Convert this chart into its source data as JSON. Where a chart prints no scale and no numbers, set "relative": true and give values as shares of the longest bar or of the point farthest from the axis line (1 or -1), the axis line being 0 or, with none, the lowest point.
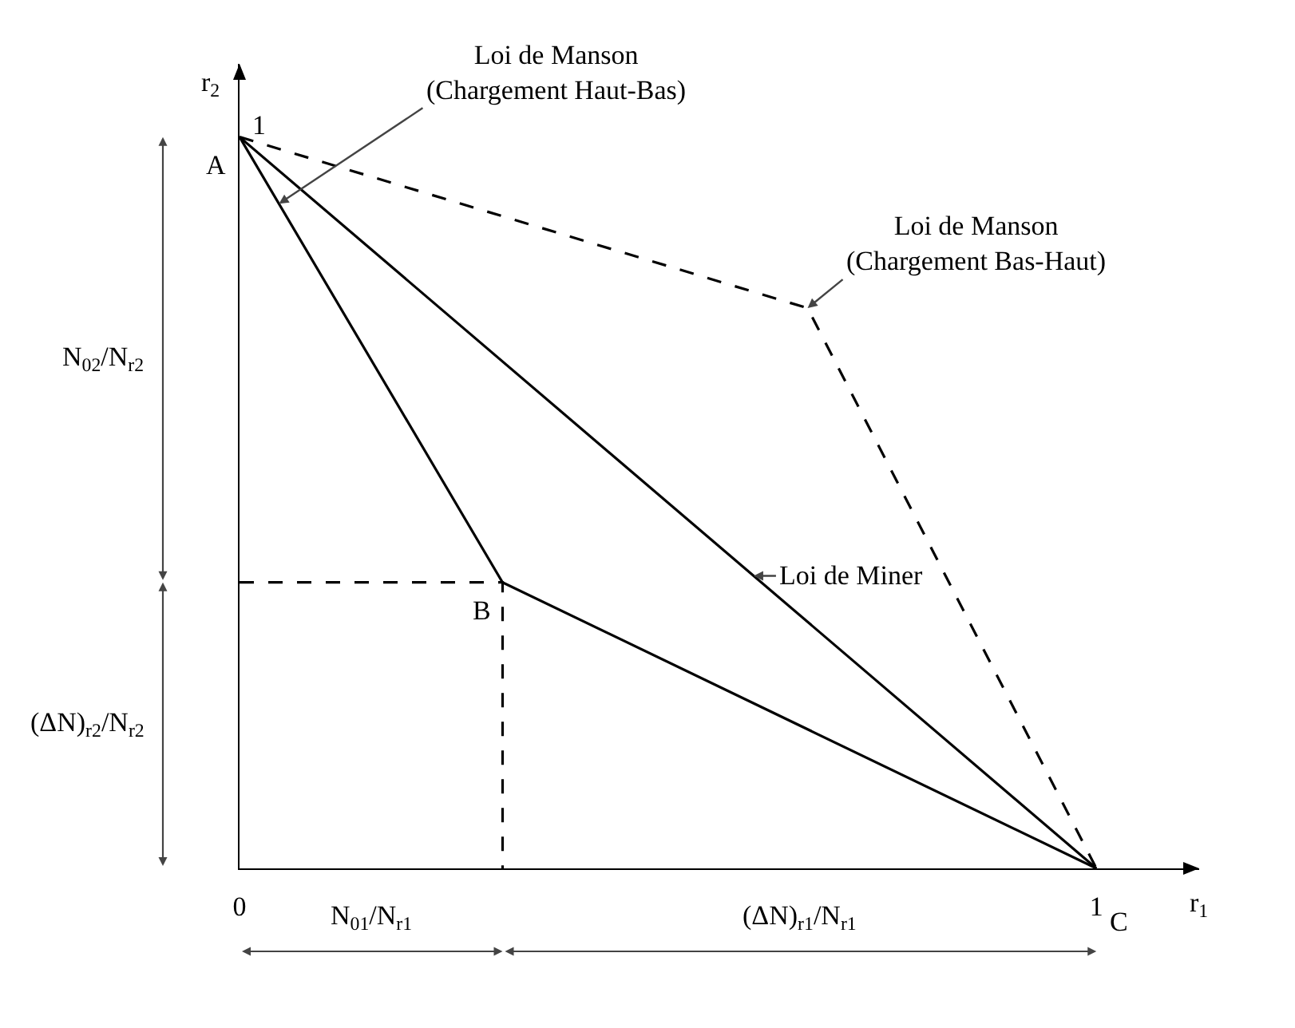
{
  "chart_data": {
    "type": "line",
    "xlabel": "r$_{1}$",
    "ylabel": "r$_{2}$",
    "xlim": [
      0,
      1.12
    ],
    "xticks": [
      0,
      1
    ],
    "relative": true,
    "grid": false,
    "series": [
      {
        "name": "Loi de Miner",
        "color": "#000000",
        "x": [
          0,
          1
        ],
        "values": [
          1,
          0
        ],
        "line_style": "solid"
      },
      {
        "name": "Loi de Manson\n(Chargement Haut-Bas)",
        "color": "#000000",
        "x": [
          0,
          0.307,
          1
        ],
        "values": [
          1,
          0.391,
          0
        ],
        "line_style": "solid"
      },
      {
        "name": "Loi de Manson\n(Chargement Bas-Haut)",
        "color": "#000000",
        "x": [
          0,
          0.663,
          1
        ],
        "values": [
          1,
          0.766,
          0
        ],
        "line_style": "dashed"
      },
      {
        "color": "#000000",
        "x": [
          0,
          0.307,
          0.307
        ],
        "values": [
          0.391,
          0.391,
          0
        ],
        "line_style": "dashed"
      }
    ],
    "annotations": [
      {
        "text": "A",
        "x": 0,
        "y": 1
      },
      {
        "text": "B",
        "x": 0.307,
        "y": 0.391
      },
      {
        "text": "C",
        "x": 1,
        "y": 0
      },
      "1",
      "N$_{02}$/N$_{r2}$",
      "(ΔN)$_{r2}$/N$_{r2}$",
      "N$_{01}$/N$_{r1}$",
      "(ΔN)$_{r1}$/N$_{r1}$"
    ]
  }
}
